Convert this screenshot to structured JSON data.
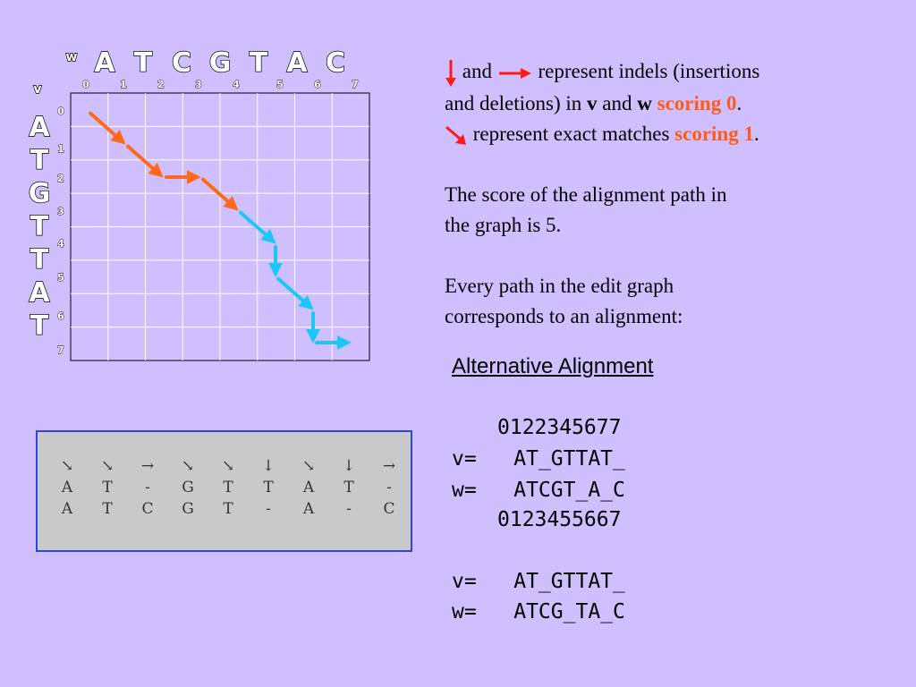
{
  "graph": {
    "w_label": "w",
    "v_label": "v",
    "w_letters": [
      "A",
      "T",
      "C",
      "G",
      "T",
      "A",
      "C"
    ],
    "v_letters": [
      "A",
      "T",
      "G",
      "T",
      "T",
      "A",
      "T"
    ],
    "col_indices": [
      "0",
      "1",
      "2",
      "3",
      "4",
      "5",
      "6",
      "7"
    ],
    "row_indices": [
      "0",
      "1",
      "2",
      "3",
      "4",
      "5",
      "6",
      "7"
    ],
    "path_colors": {
      "orange": "#ff6a1a",
      "cyan": "#19c8f5"
    },
    "path": [
      {
        "dir": "diagonal",
        "color": "orange"
      },
      {
        "dir": "diagonal",
        "color": "orange"
      },
      {
        "dir": "right",
        "color": "orange"
      },
      {
        "dir": "diagonal",
        "color": "orange"
      },
      {
        "dir": "diagonal",
        "color": "cyan"
      },
      {
        "dir": "down",
        "color": "cyan"
      },
      {
        "dir": "diagonal",
        "color": "cyan"
      },
      {
        "dir": "down",
        "color": "cyan"
      },
      {
        "dir": "right",
        "color": "cyan"
      }
    ]
  },
  "explanation": {
    "and_1": "and",
    "indel_text_1": "represent indels (insertions",
    "indel_text_2": "and deletions) in",
    "v": "v",
    "and_2": "and",
    "w": "w",
    "scoring_0": "scoring 0",
    "period_1": ".",
    "match_text": "represent exact matches",
    "scoring_1": "scoring 1",
    "period_2": ".",
    "score_line_1": "The score of the alignment path in",
    "score_line_2": "the graph is 5.",
    "every_line_1": "Every path in the edit graph",
    "every_line_2": "corresponds to an alignment:",
    "indel_arrow_color": "#ff1a1a",
    "match_arrow_color": "#ff1a1a"
  },
  "alignment_box": {
    "columns": [
      {
        "arrow": "↘",
        "v": "A",
        "w": "A"
      },
      {
        "arrow": "↘",
        "v": "T",
        "w": "T"
      },
      {
        "arrow": "→",
        "v": "-",
        "w": "C"
      },
      {
        "arrow": "↘",
        "v": "G",
        "w": "G"
      },
      {
        "arrow": "↘",
        "v": "T",
        "w": "T"
      },
      {
        "arrow": "↓",
        "v": "T",
        "w": "-"
      },
      {
        "arrow": "↘",
        "v": "A",
        "w": "A"
      },
      {
        "arrow": "↓",
        "v": "T",
        "w": "-"
      },
      {
        "arrow": "→",
        "v": "-",
        "w": "C"
      }
    ]
  },
  "alternative": {
    "title": "Alternative Alignment",
    "top_indices": "0122345677",
    "v_line_1": "v=   AT_GTTAT_",
    "w_line_1": "w=   ATCGT_A_C",
    "bottom_indices": "0123455667",
    "v_line_2": "v=   AT_GTTAT_",
    "w_line_2": "w=   ATCG_TA_C"
  }
}
